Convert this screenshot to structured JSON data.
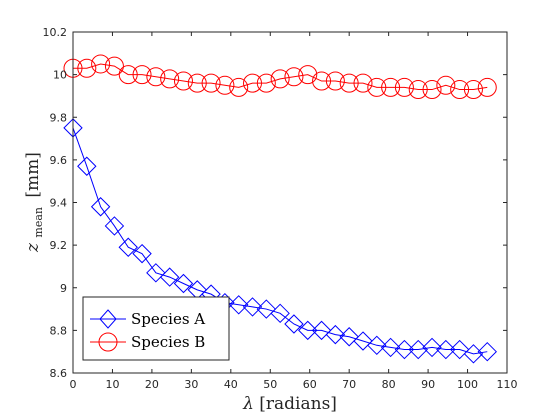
{
  "chart_data": {
    "type": "line",
    "title": "",
    "xlabel_symbol": "λ",
    "xlabel_unit": "[radians]",
    "ylabel_symbol": "z",
    "ylabel_subscript": "mean",
    "ylabel_unit": "[mm]",
    "xlim": [
      0,
      110
    ],
    "ylim": [
      8.6,
      10.2
    ],
    "xticks": [
      "0",
      "10",
      "20",
      "30",
      "40",
      "50",
      "60",
      "70",
      "80",
      "90",
      "100",
      "110"
    ],
    "yticks": [
      "8.6",
      "8.8",
      "9",
      "9.2",
      "9.4",
      "9.6",
      "9.8",
      "10",
      "10.2"
    ],
    "grid": false,
    "legend_position": "bottom-left",
    "series": [
      {
        "name": "Species A",
        "color": "#0000ff",
        "marker": "diamond",
        "x": [
          0,
          3.5,
          7,
          10.5,
          14,
          17.5,
          21,
          24.5,
          28,
          31.5,
          35,
          38.5,
          42,
          45.5,
          49,
          52.5,
          56,
          59.5,
          63,
          66.5,
          70,
          73.5,
          77,
          80.5,
          84,
          87.5,
          91,
          94.5,
          98,
          101.5,
          105
        ],
        "y": [
          9.75,
          9.57,
          9.38,
          9.29,
          9.19,
          9.16,
          9.07,
          9.05,
          9.02,
          8.99,
          8.97,
          8.93,
          8.92,
          8.91,
          8.9,
          8.88,
          8.83,
          8.8,
          8.8,
          8.78,
          8.77,
          8.75,
          8.73,
          8.72,
          8.71,
          8.71,
          8.72,
          8.71,
          8.71,
          8.69,
          8.7
        ]
      },
      {
        "name": "Species B",
        "color": "#ff0000",
        "marker": "circle",
        "x": [
          0,
          3.5,
          7,
          10.5,
          14,
          17.5,
          21,
          24.5,
          28,
          31.5,
          35,
          38.5,
          42,
          45.5,
          49,
          52.5,
          56,
          59.5,
          63,
          66.5,
          70,
          73.5,
          77,
          80.5,
          84,
          87.5,
          91,
          94.5,
          98,
          101.5,
          105
        ],
        "y": [
          10.03,
          10.03,
          10.05,
          10.04,
          10.0,
          10.0,
          9.99,
          9.98,
          9.97,
          9.96,
          9.96,
          9.95,
          9.94,
          9.96,
          9.96,
          9.98,
          9.99,
          10.0,
          9.97,
          9.97,
          9.96,
          9.96,
          9.94,
          9.94,
          9.94,
          9.93,
          9.93,
          9.95,
          9.93,
          9.93,
          9.94
        ]
      }
    ]
  }
}
